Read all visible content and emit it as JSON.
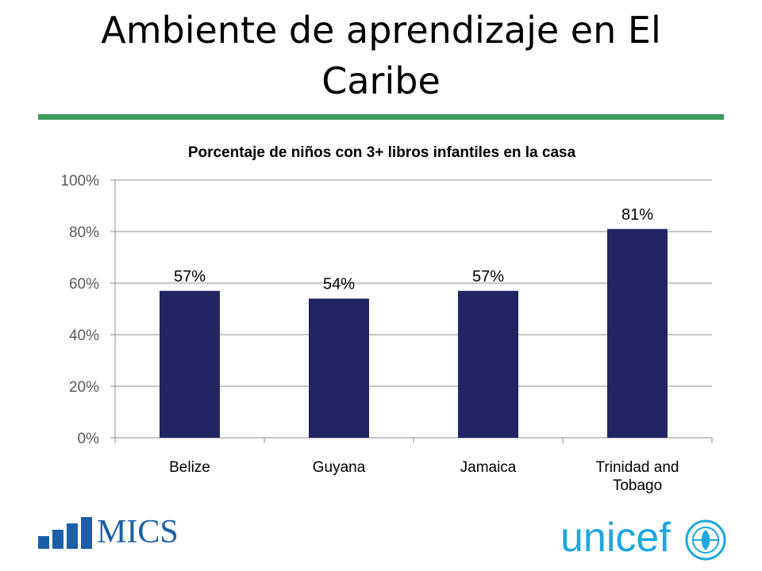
{
  "slide": {
    "title_line1": "Ambiente de aprendizaje en El",
    "title_line2": "Caribe",
    "accent_color": "#3a9a5c"
  },
  "chart_data": {
    "type": "bar",
    "title": "Porcentaje de niños con 3+ libros infantiles en la casa",
    "categories": [
      "Belize",
      "Guyana",
      "Jamaica",
      "Trinidad and Tobago"
    ],
    "values": [
      57,
      54,
      57,
      81
    ],
    "data_labels": [
      "57%",
      "54%",
      "57%",
      "81%"
    ],
    "y_ticks": [
      "0%",
      "20%",
      "40%",
      "60%",
      "80%",
      "100%"
    ],
    "ylim": [
      0,
      100
    ],
    "grid": true,
    "bar_color": "#232463"
  },
  "logos": {
    "mics": "MICS",
    "unicef": "unicef"
  }
}
